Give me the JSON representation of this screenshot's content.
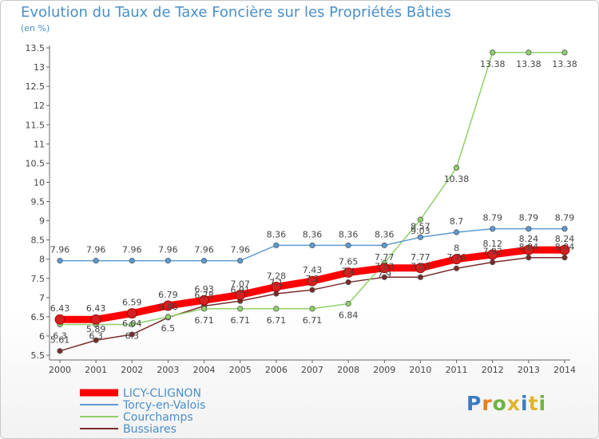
{
  "header": {
    "title": "Evolution du Taux de Taxe Foncière sur les Propriétés Bâties",
    "unit": "(en %)"
  },
  "logo": {
    "text": "Proxiti"
  },
  "chart_data": {
    "type": "line",
    "title": "Evolution du Taux de Taxe Foncière sur les Propriétés Bâties",
    "ylabel": "(en %)",
    "xlabel": "",
    "ylim": [
      5.5,
      13.5
    ],
    "yticks": [
      "5.5",
      "6",
      "6.5",
      "7",
      "7.5",
      "8",
      "8.5",
      "9",
      "9.5",
      "10",
      "10.5",
      "11",
      "11.5",
      "12",
      "12.5",
      "13",
      "13.5"
    ],
    "categories": [
      "2000",
      "2001",
      "2002",
      "2003",
      "2004",
      "2005",
      "2006",
      "2007",
      "2008",
      "2009",
      "2010",
      "2011",
      "2012",
      "2013",
      "2014"
    ],
    "grid": false,
    "legend_position": "bottom-left",
    "series": [
      {
        "name": "LICY-CLIGNON",
        "color": "#ff0000",
        "values": [
          6.43,
          6.43,
          6.59,
          6.79,
          6.93,
          7.07,
          7.28,
          7.43,
          7.65,
          7.77,
          7.77,
          8,
          8.12,
          8.24,
          8.24
        ],
        "labels": [
          "6.43",
          "6.43",
          "6.59",
          "6.79",
          "6.93",
          "7.07",
          "7.28",
          "7.43",
          "7.65",
          "7.77",
          "7.77",
          "8",
          "8.12",
          "8.24",
          "8.24"
        ]
      },
      {
        "name": "Torcy-en-Valois",
        "color": "#5b9bd5",
        "values": [
          7.96,
          7.96,
          7.96,
          7.96,
          7.96,
          7.96,
          8.36,
          8.36,
          8.36,
          8.36,
          8.57,
          8.7,
          8.79,
          8.79,
          8.79
        ],
        "labels": [
          "7.96",
          "7.96",
          "7.96",
          "7.96",
          "7.96",
          "7.96",
          "8.36",
          "8.36",
          "8.36",
          "8.36",
          "8.57",
          "8.7",
          "8.79",
          "8.79",
          "8.79"
        ]
      },
      {
        "name": "Courchamps",
        "color": "#8fd16a",
        "values": [
          6.3,
          6.3,
          6.3,
          6.5,
          6.71,
          6.71,
          6.71,
          6.71,
          6.84,
          7.9,
          9.03,
          10.38,
          13.38,
          13.38,
          13.38
        ],
        "labels": [
          "6.3",
          "6.3",
          "6.3",
          "6.5",
          "6.71",
          "6.71",
          "6.71",
          "6.71",
          "6.84",
          "7.9",
          "9.03",
          "10.38",
          "13.38",
          "13.38",
          "13.38"
        ]
      },
      {
        "name": "Bussiares",
        "color": "#7a2a2a",
        "values": [
          5.61,
          5.89,
          6.04,
          6.48,
          6.78,
          6.91,
          7.1,
          7.2,
          7.4,
          7.53,
          7.53,
          7.76,
          7.92,
          8.04,
          8.04
        ],
        "labels": [
          "5.61",
          "5.89",
          "6.04",
          "6.48",
          "6.78",
          "6.91",
          "7.1",
          "7.2",
          "7.4",
          "7.53",
          "7.53",
          "7.76",
          "7.92",
          "8.04",
          "8.04"
        ]
      }
    ]
  }
}
